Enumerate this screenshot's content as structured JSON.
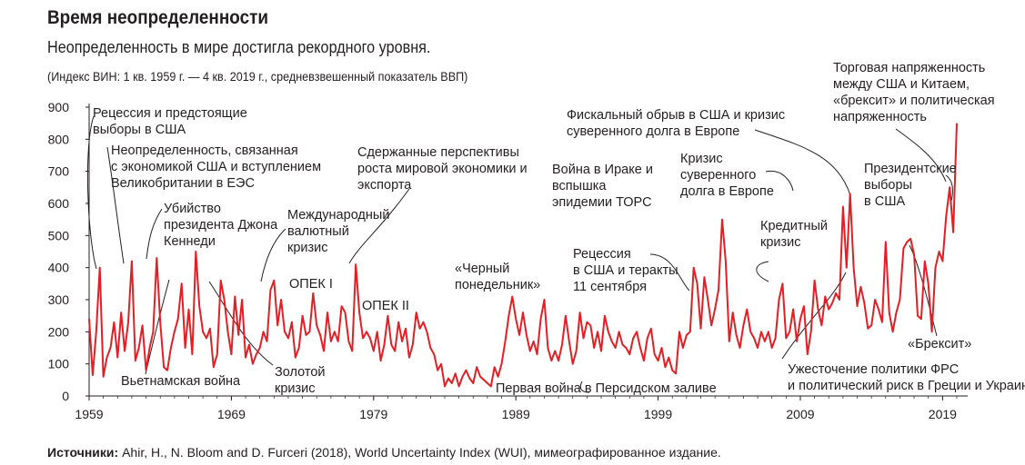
{
  "header": {
    "title": "Время неопределенности",
    "subtitle": "Неопределенность в мире достигла рекордного уровня.",
    "note": "(Индекс ВИН: 1 кв. 1959 г. — 4 кв. 2019 г., средневзвешенный показатель ВВП)"
  },
  "footer": {
    "source_label": "Источники:",
    "source_text": " Ahir, H., N. Bloom and D. Furceri (2018), World Uncertainty Index (WUI), мимеографированное издание."
  },
  "chart_data": {
    "type": "line",
    "line_color": "#e31e24",
    "xlabel": "",
    "ylabel": "",
    "xlim": [
      1959.0,
      2020.0
    ],
    "ylim": [
      0,
      900
    ],
    "x_ticks": [
      1959,
      1969,
      1979,
      1989,
      1999,
      2009,
      2019
    ],
    "y_ticks": [
      0,
      100,
      200,
      300,
      400,
      500,
      600,
      700,
      800,
      900
    ],
    "grid": false,
    "series": [
      {
        "points": [
          [
            1959.0,
            240
          ],
          [
            1959.25,
            65
          ],
          [
            1959.5,
            200
          ],
          [
            1959.75,
            400
          ],
          [
            1960.0,
            60
          ],
          [
            1960.25,
            120
          ],
          [
            1960.5,
            150
          ],
          [
            1960.75,
            230
          ],
          [
            1961.0,
            120
          ],
          [
            1961.25,
            260
          ],
          [
            1961.5,
            140
          ],
          [
            1961.75,
            230
          ],
          [
            1962.0,
            420
          ],
          [
            1962.25,
            110
          ],
          [
            1962.5,
            150
          ],
          [
            1962.75,
            220
          ],
          [
            1963.0,
            80
          ],
          [
            1963.25,
            150
          ],
          [
            1963.5,
            200
          ],
          [
            1963.75,
            430
          ],
          [
            1964.0,
            230
          ],
          [
            1964.25,
            90
          ],
          [
            1964.5,
            80
          ],
          [
            1964.75,
            150
          ],
          [
            1965.0,
            200
          ],
          [
            1965.25,
            240
          ],
          [
            1965.5,
            350
          ],
          [
            1965.75,
            150
          ],
          [
            1966.0,
            270
          ],
          [
            1966.25,
            130
          ],
          [
            1966.5,
            450
          ],
          [
            1966.75,
            280
          ],
          [
            1967.0,
            200
          ],
          [
            1967.25,
            180
          ],
          [
            1967.5,
            210
          ],
          [
            1967.75,
            90
          ],
          [
            1968.0,
            130
          ],
          [
            1968.25,
            360
          ],
          [
            1968.5,
            300
          ],
          [
            1968.75,
            200
          ],
          [
            1969.0,
            130
          ],
          [
            1969.25,
            310
          ],
          [
            1969.5,
            190
          ],
          [
            1969.75,
            300
          ],
          [
            1970.0,
            120
          ],
          [
            1970.25,
            160
          ],
          [
            1970.5,
            100
          ],
          [
            1970.75,
            130
          ],
          [
            1971.0,
            150
          ],
          [
            1971.25,
            200
          ],
          [
            1971.5,
            170
          ],
          [
            1971.75,
            330
          ],
          [
            1972.0,
            360
          ],
          [
            1972.25,
            220
          ],
          [
            1972.5,
            300
          ],
          [
            1972.75,
            200
          ],
          [
            1973.0,
            180
          ],
          [
            1973.25,
            230
          ],
          [
            1973.5,
            120
          ],
          [
            1973.75,
            150
          ],
          [
            1974.0,
            250
          ],
          [
            1974.25,
            190
          ],
          [
            1974.5,
            200
          ],
          [
            1974.75,
            320
          ],
          [
            1975.0,
            220
          ],
          [
            1975.25,
            190
          ],
          [
            1975.5,
            140
          ],
          [
            1975.75,
            260
          ],
          [
            1976.0,
            170
          ],
          [
            1976.25,
            200
          ],
          [
            1976.5,
            170
          ],
          [
            1976.75,
            280
          ],
          [
            1977.0,
            260
          ],
          [
            1977.25,
            170
          ],
          [
            1977.5,
            140
          ],
          [
            1977.75,
            410
          ],
          [
            1978.0,
            260
          ],
          [
            1978.25,
            180
          ],
          [
            1978.5,
            200
          ],
          [
            1978.75,
            180
          ],
          [
            1979.0,
            140
          ],
          [
            1979.25,
            200
          ],
          [
            1979.5,
            110
          ],
          [
            1979.75,
            160
          ],
          [
            1980.0,
            250
          ],
          [
            1980.25,
            160
          ],
          [
            1980.5,
            140
          ],
          [
            1980.75,
            230
          ],
          [
            1981.0,
            170
          ],
          [
            1981.25,
            210
          ],
          [
            1981.5,
            120
          ],
          [
            1981.75,
            160
          ],
          [
            1982.0,
            260
          ],
          [
            1982.25,
            210
          ],
          [
            1982.5,
            230
          ],
          [
            1982.75,
            200
          ],
          [
            1983.0,
            150
          ],
          [
            1983.25,
            130
          ],
          [
            1983.5,
            80
          ],
          [
            1983.75,
            100
          ],
          [
            1984.0,
            30
          ],
          [
            1984.25,
            55
          ],
          [
            1984.5,
            40
          ],
          [
            1984.75,
            70
          ],
          [
            1985.0,
            30
          ],
          [
            1985.25,
            60
          ],
          [
            1985.5,
            80
          ],
          [
            1985.75,
            55
          ],
          [
            1986.0,
            40
          ],
          [
            1986.25,
            90
          ],
          [
            1986.5,
            60
          ],
          [
            1986.75,
            50
          ],
          [
            1987.0,
            40
          ],
          [
            1987.25,
            30
          ],
          [
            1987.5,
            90
          ],
          [
            1987.75,
            60
          ],
          [
            1988.0,
            100
          ],
          [
            1988.25,
            170
          ],
          [
            1988.5,
            250
          ],
          [
            1988.75,
            310
          ],
          [
            1989.0,
            240
          ],
          [
            1989.25,
            190
          ],
          [
            1989.5,
            260
          ],
          [
            1989.75,
            190
          ],
          [
            1990.0,
            140
          ],
          [
            1990.25,
            170
          ],
          [
            1990.5,
            130
          ],
          [
            1990.75,
            240
          ],
          [
            1991.0,
            300
          ],
          [
            1991.25,
            150
          ],
          [
            1991.5,
            110
          ],
          [
            1991.75,
            140
          ],
          [
            1992.0,
            110
          ],
          [
            1992.25,
            160
          ],
          [
            1992.5,
            250
          ],
          [
            1992.75,
            170
          ],
          [
            1993.0,
            100
          ],
          [
            1993.25,
            140
          ],
          [
            1993.5,
            260
          ],
          [
            1993.75,
            180
          ],
          [
            1994.0,
            230
          ],
          [
            1994.25,
            220
          ],
          [
            1994.5,
            150
          ],
          [
            1994.75,
            200
          ],
          [
            1995.0,
            140
          ],
          [
            1995.25,
            250
          ],
          [
            1995.5,
            200
          ],
          [
            1995.75,
            170
          ],
          [
            1996.0,
            150
          ],
          [
            1996.25,
            200
          ],
          [
            1996.5,
            160
          ],
          [
            1996.75,
            150
          ],
          [
            1997.0,
            130
          ],
          [
            1997.25,
            180
          ],
          [
            1997.5,
            200
          ],
          [
            1997.75,
            150
          ],
          [
            1998.0,
            110
          ],
          [
            1998.25,
            180
          ],
          [
            1998.5,
            210
          ],
          [
            1998.75,
            130
          ],
          [
            1999.0,
            110
          ],
          [
            1999.25,
            150
          ],
          [
            1999.5,
            90
          ],
          [
            1999.75,
            120
          ],
          [
            2000.0,
            80
          ],
          [
            2000.25,
            70
          ],
          [
            2000.5,
            200
          ],
          [
            2000.75,
            150
          ],
          [
            2001.0,
            190
          ],
          [
            2001.25,
            200
          ],
          [
            2001.5,
            400
          ],
          [
            2001.75,
            350
          ],
          [
            2002.0,
            210
          ],
          [
            2002.25,
            370
          ],
          [
            2002.5,
            300
          ],
          [
            2002.75,
            220
          ],
          [
            2003.0,
            270
          ],
          [
            2003.25,
            330
          ],
          [
            2003.5,
            550
          ],
          [
            2003.75,
            420
          ],
          [
            2004.0,
            170
          ],
          [
            2004.25,
            260
          ],
          [
            2004.5,
            190
          ],
          [
            2004.75,
            150
          ],
          [
            2005.0,
            220
          ],
          [
            2005.25,
            270
          ],
          [
            2005.5,
            200
          ],
          [
            2005.75,
            180
          ],
          [
            2006.0,
            150
          ],
          [
            2006.25,
            200
          ],
          [
            2006.5,
            170
          ],
          [
            2006.75,
            200
          ],
          [
            2007.0,
            150
          ],
          [
            2007.25,
            180
          ],
          [
            2007.5,
            300
          ],
          [
            2007.75,
            350
          ],
          [
            2008.0,
            180
          ],
          [
            2008.25,
            200
          ],
          [
            2008.5,
            270
          ],
          [
            2008.75,
            170
          ],
          [
            2009.0,
            240
          ],
          [
            2009.25,
            280
          ],
          [
            2009.5,
            130
          ],
          [
            2009.75,
            200
          ],
          [
            2010.0,
            360
          ],
          [
            2010.25,
            270
          ],
          [
            2010.5,
            220
          ],
          [
            2010.75,
            310
          ],
          [
            2011.0,
            270
          ],
          [
            2011.25,
            290
          ],
          [
            2011.5,
            320
          ],
          [
            2011.75,
            300
          ],
          [
            2012.0,
            590
          ],
          [
            2012.25,
            400
          ],
          [
            2012.5,
            630
          ],
          [
            2012.75,
            400
          ],
          [
            2013.0,
            280
          ],
          [
            2013.25,
            340
          ],
          [
            2013.5,
            290
          ],
          [
            2013.75,
            210
          ],
          [
            2014.0,
            220
          ],
          [
            2014.25,
            300
          ],
          [
            2014.5,
            270
          ],
          [
            2014.75,
            230
          ],
          [
            2015.0,
            480
          ],
          [
            2015.25,
            260
          ],
          [
            2015.5,
            200
          ],
          [
            2015.75,
            260
          ],
          [
            2016.0,
            300
          ],
          [
            2016.25,
            460
          ],
          [
            2016.5,
            480
          ],
          [
            2016.75,
            490
          ],
          [
            2017.0,
            440
          ],
          [
            2017.25,
            250
          ],
          [
            2017.5,
            240
          ],
          [
            2017.75,
            420
          ],
          [
            2018.0,
            350
          ],
          [
            2018.25,
            200
          ],
          [
            2018.5,
            400
          ],
          [
            2018.75,
            450
          ],
          [
            2019.0,
            420
          ],
          [
            2019.25,
            560
          ],
          [
            2019.5,
            650
          ],
          [
            2019.75,
            510
          ],
          [
            2020.0,
            850
          ]
        ]
      }
    ],
    "annotations": [
      {
        "lines": [
          "Рецессия и предстоящие",
          "выборы в США"
        ]
      },
      {
        "lines": [
          "Неопределенность, связанная",
          "с экономикой США и вступлением",
          "Великобритании в ЕЭС"
        ]
      },
      {
        "lines": [
          "Убийство",
          "президента Джона",
          "Кеннеди"
        ]
      },
      {
        "lines": [
          "Вьетнамская война"
        ]
      },
      {
        "lines": [
          "Международный",
          "валютный",
          "кризис"
        ]
      },
      {
        "lines": [
          "Золотой",
          "кризис"
        ]
      },
      {
        "lines": [
          "ОПЕК I"
        ]
      },
      {
        "lines": [
          "Сдержанные перспективы",
          "роста мировой экономики и",
          "экспорта"
        ]
      },
      {
        "lines": [
          "ОПЕК II"
        ]
      },
      {
        "lines": [
          "«Черный",
          "понедельник»"
        ]
      },
      {
        "lines": [
          "Первая война в Персидском заливе"
        ]
      },
      {
        "lines": [
          "Рецессия",
          "в США и теракты",
          "11 сентября"
        ]
      },
      {
        "lines": [
          "Война в Ираке и",
          "вспышка",
          "эпидемии ТОРС"
        ]
      },
      {
        "lines": [
          "Фискальный обрыв в США и кризис",
          "суверенного долга в Европе"
        ]
      },
      {
        "lines": [
          "Кризис",
          "суверенного",
          "долга в Европе"
        ]
      },
      {
        "lines": [
          "Кредитный",
          "кризис"
        ]
      },
      {
        "lines": [
          "Торговая напряженность",
          "между США и Китаем,",
          "«брексит» и политическая",
          "напряженность"
        ]
      },
      {
        "lines": [
          "Президентские",
          "выборы",
          "в США"
        ]
      },
      {
        "lines": [
          "«Брексит»"
        ]
      },
      {
        "lines": [
          "Ужесточение политики ФРС",
          "и политический риск в Греции и Украине"
        ]
      }
    ]
  }
}
